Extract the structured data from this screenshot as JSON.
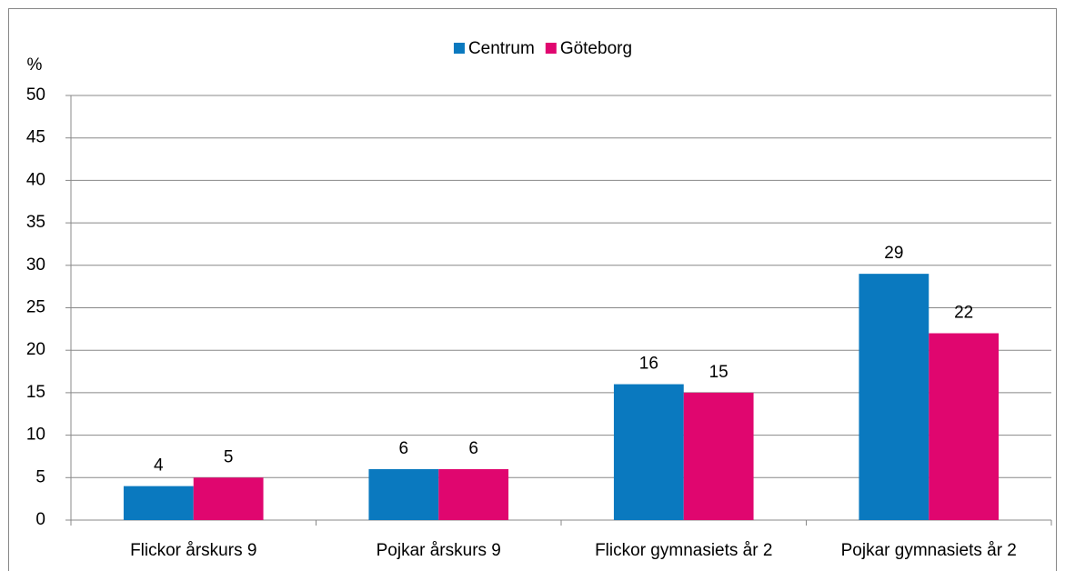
{
  "chart_data": {
    "type": "bar",
    "y_label": "%",
    "categories": [
      "Flickor årskurs 9",
      "Pojkar årskurs 9",
      "Flickor gymnasiets år 2",
      "Pojkar gymnasiets år 2"
    ],
    "series": [
      {
        "name": "Centrum",
        "color": "#0a79bf",
        "values": [
          4,
          6,
          16,
          29
        ]
      },
      {
        "name": "Göteborg",
        "color": "#e0066f",
        "values": [
          5,
          6,
          15,
          22
        ]
      }
    ],
    "ylim": [
      0,
      50
    ],
    "yticks": [
      0,
      5,
      10,
      15,
      20,
      25,
      30,
      35,
      40,
      45,
      50
    ],
    "grid": true,
    "legend": "top",
    "data_labels": true
  }
}
